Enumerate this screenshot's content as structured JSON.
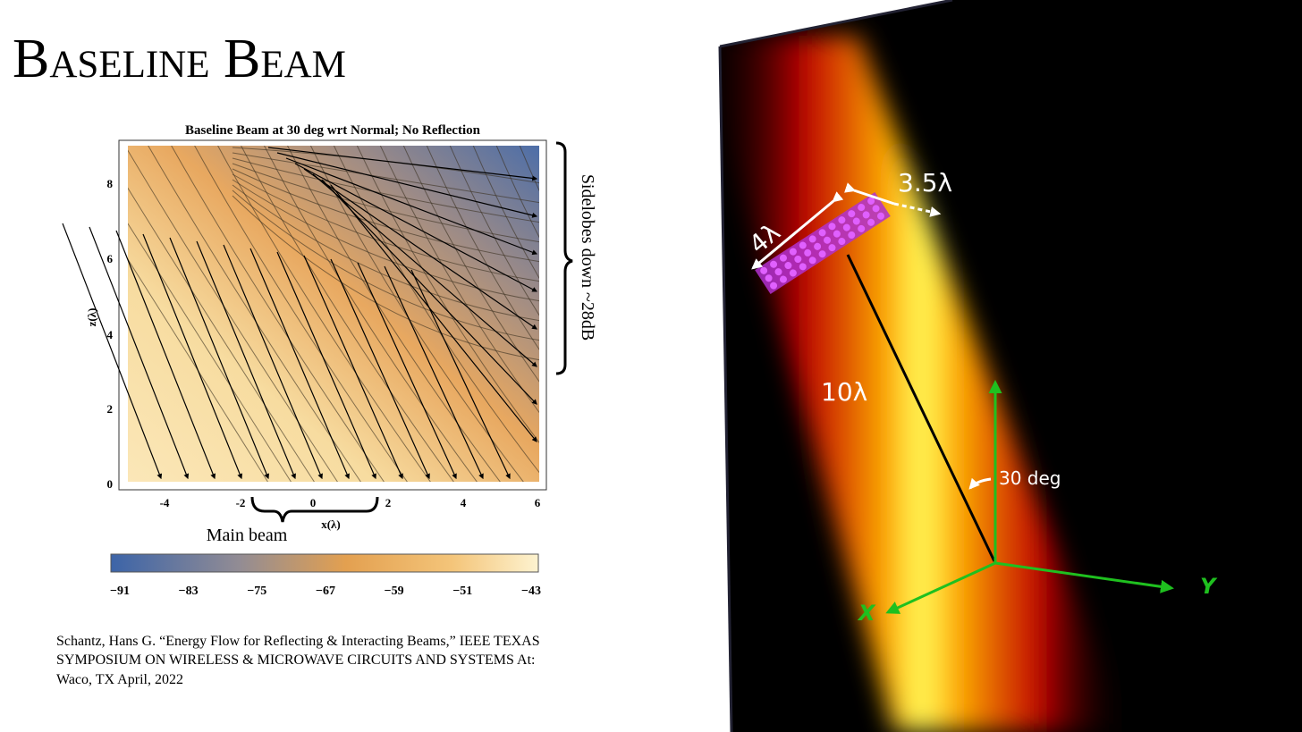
{
  "header": {
    "title": "Baseline Beam"
  },
  "plot": {
    "title": "Baseline Beam at 30 deg wrt Normal; No Reflection",
    "x_label": "x(λ)",
    "y_label": "z(λ)",
    "xticks": [
      "-4",
      "-2",
      "0",
      "2",
      "4",
      "6"
    ],
    "yticks": [
      "8",
      "6",
      "4",
      "2",
      "0"
    ],
    "colorbar_ticks": [
      "−91",
      "−83",
      "−75",
      "−67",
      "−59",
      "−51",
      "−43"
    ],
    "annotations": {
      "sidelobes": "Sidelobes down ~28dB",
      "main_beam": "Main beam"
    }
  },
  "citation": [
    "Schantz, Hans G. “Energy Flow for Reflecting & Interacting Beams,” IEEE TEXAS",
    "SYMPOSIUM ON WIRELESS & MICROWAVE CIRCUITS AND SYSTEMS At:",
    "Waco, TX April, 2022"
  ],
  "render": {
    "labels": {
      "width": "3.5λ",
      "length": "4λ",
      "distance": "10λ",
      "angle": "30 deg",
      "x_axis": "X",
      "y_axis": "Y"
    }
  }
}
